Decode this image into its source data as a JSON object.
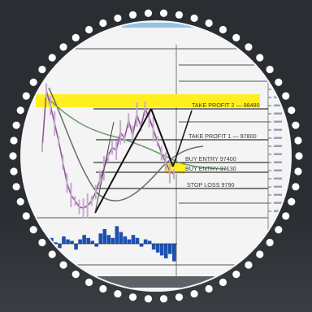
{
  "colors": {
    "background": "#2a2d31",
    "plate": "#f4f4f4",
    "highlight": "#ffef20",
    "price_line": "#8a5a90",
    "ma_green": "#6a9a6a",
    "ma_gray": "#6a6a6a",
    "trend_line": "#111111",
    "level_line": "#333333",
    "oscillator": "#1d4fb0",
    "dots": "#ffffff"
  },
  "chart_data": {
    "type": "line",
    "title": "",
    "xlabel": "",
    "ylabel": "",
    "levels": [
      {
        "label": "TAKE PROFIT 2 — 98480",
        "price": 98480,
        "highlighted": true
      },
      {
        "label": "TAKE PROFIT 1 — 97800",
        "price": 97800,
        "highlighted": false
      },
      {
        "label": "BUY ENTRY  97400",
        "price": 97400,
        "highlighted": false
      },
      {
        "label": "BUY ENTRY  97130",
        "price": 97130,
        "highlighted": true
      },
      {
        "label": "STOP LOSS  9790",
        "price": 9790,
        "highlighted": false
      }
    ],
    "series": [
      {
        "values": [
          97700,
          98650,
          98400,
          98100,
          97800,
          97450,
          97100,
          96900,
          96800,
          96700,
          96680,
          96720,
          96800,
          96950,
          97150,
          97350,
          97550,
          97700,
          97650,
          97950,
          97850,
          98150,
          97900,
          98250,
          98050,
          98350,
          98200,
          98000,
          97800,
          97600,
          97450,
          97300,
          97250
        ]
      }
    ]
  }
}
